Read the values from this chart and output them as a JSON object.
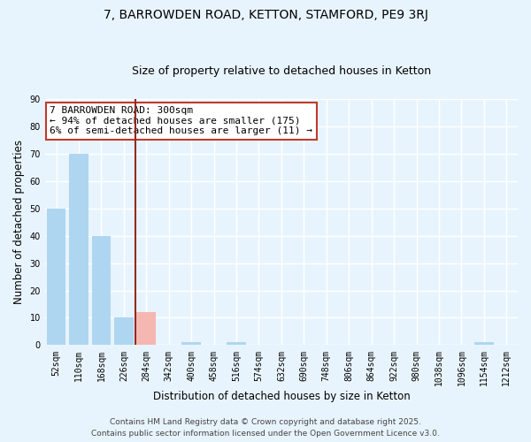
{
  "title": "7, BARROWDEN ROAD, KETTON, STAMFORD, PE9 3RJ",
  "subtitle": "Size of property relative to detached houses in Ketton",
  "xlabel": "Distribution of detached houses by size in Ketton",
  "ylabel": "Number of detached properties",
  "bin_labels": [
    "52sqm",
    "110sqm",
    "168sqm",
    "226sqm",
    "284sqm",
    "342sqm",
    "400sqm",
    "458sqm",
    "516sqm",
    "574sqm",
    "632sqm",
    "690sqm",
    "748sqm",
    "806sqm",
    "864sqm",
    "922sqm",
    "980sqm",
    "1038sqm",
    "1096sqm",
    "1154sqm",
    "1212sqm"
  ],
  "bar_values": [
    50,
    70,
    40,
    10,
    12,
    0,
    1,
    0,
    1,
    0,
    0,
    0,
    0,
    0,
    0,
    0,
    0,
    0,
    0,
    1,
    0
  ],
  "bar_color": "#aed6f1",
  "highlight_bar_index": 4,
  "highlight_bar_color": "#f5b7b1",
  "highlight_line_color": "#922b21",
  "vline_x": 3.5,
  "annotation_title": "7 BARROWDEN ROAD: 300sqm",
  "annotation_line1": "← 94% of detached houses are smaller (175)",
  "annotation_line2": "6% of semi-detached houses are larger (11) →",
  "annotation_box_color": "#ffffff",
  "annotation_box_edgecolor": "#c0392b",
  "ylim": [
    0,
    90
  ],
  "yticks": [
    0,
    10,
    20,
    30,
    40,
    50,
    60,
    70,
    80,
    90
  ],
  "background_color": "#e8f4fd",
  "grid_color": "#ffffff",
  "footer_line1": "Contains HM Land Registry data © Crown copyright and database right 2025.",
  "footer_line2": "Contains public sector information licensed under the Open Government Licence v3.0.",
  "title_fontsize": 10,
  "subtitle_fontsize": 9,
  "axis_label_fontsize": 8.5,
  "tick_fontsize": 7,
  "annotation_fontsize": 8,
  "footer_fontsize": 6.5
}
